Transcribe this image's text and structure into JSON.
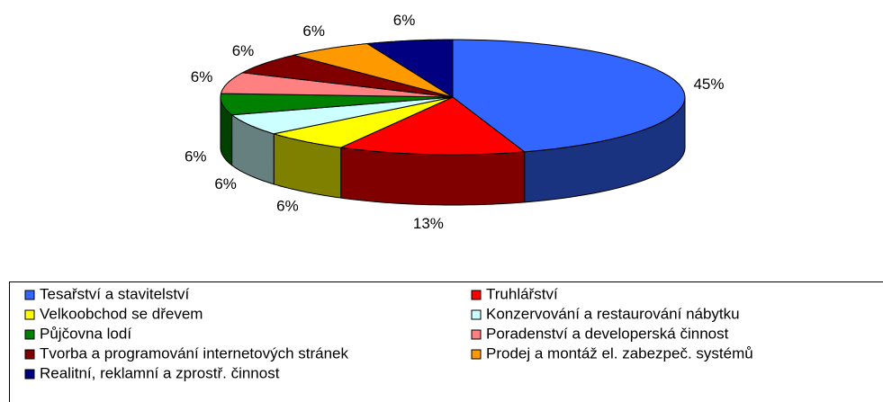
{
  "chart_data": {
    "type": "pie3d",
    "categories": [
      "Tesařství a stavitelství",
      "Truhlářství",
      "Velkoobchod se dřevem",
      "Konzervování a restaurování nábytku",
      "Půjčovna lodí",
      "Poradenství a developerská činnost",
      "Tvorba a programování internetových stránek",
      "Prodej a montáž el. zabezpeč. systémů",
      "Realitní, reklamní a zprostř. činnost"
    ],
    "values": [
      45,
      13,
      6,
      6,
      6,
      6,
      6,
      6,
      6
    ],
    "value_labels": [
      "45%",
      "13%",
      "6%",
      "6%",
      "6%",
      "6%",
      "6%",
      "6%",
      "6%"
    ],
    "colors": [
      "#3366ff",
      "#ff0000",
      "#ffff00",
      "#ccffff",
      "#008000",
      "#ff8080",
      "#800000",
      "#ff9900",
      "#000080"
    ],
    "legend": "bottom"
  }
}
